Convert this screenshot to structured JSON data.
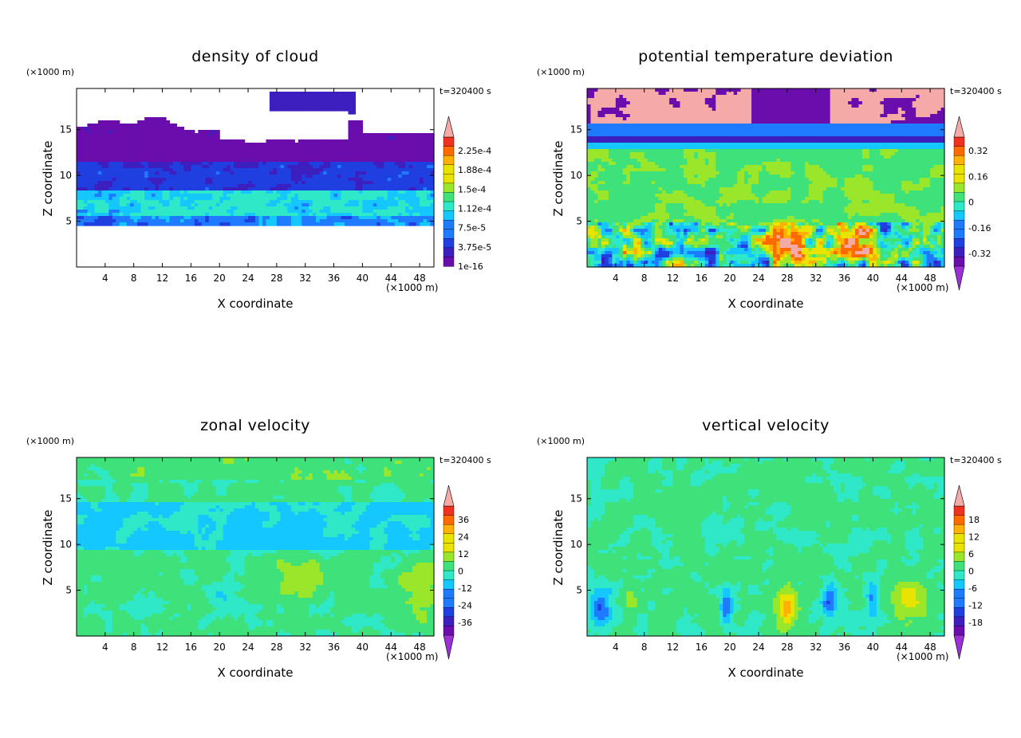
{
  "chart_data": [
    {
      "type": "heatmap",
      "title": "density of cloud",
      "xlabel": "X coordinate",
      "ylabel": "Z coordinate",
      "x_unit": "(×1000 m)",
      "y_unit": "(×1000 m)",
      "time_label": "t=320400 s",
      "xlim": [
        0,
        50
      ],
      "ylim": [
        0,
        19.5
      ],
      "x_ticks": [
        "4",
        "8",
        "12",
        "16",
        "20",
        "24",
        "28",
        "32",
        "36",
        "40",
        "44",
        "48"
      ],
      "y_ticks": [
        "5",
        "10",
        "15"
      ],
      "colorbar": {
        "labels": [
          "2.25e-4",
          "1.88e-4",
          "1.5e-4",
          "1.12e-4",
          "7.5e-5",
          "3.75e-5",
          "1e-16"
        ],
        "arrow_max": true,
        "arrow_min": false
      },
      "field": "cloud"
    },
    {
      "type": "heatmap",
      "title": "potential temperature deviation",
      "xlabel": "X coordinate",
      "ylabel": "Z coordinate",
      "x_unit": "(×1000 m)",
      "y_unit": "(×1000 m)",
      "time_label": "t=320400 s",
      "xlim": [
        0,
        50
      ],
      "ylim": [
        0,
        19.5
      ],
      "x_ticks": [
        "4",
        "8",
        "12",
        "16",
        "20",
        "24",
        "28",
        "32",
        "36",
        "40",
        "44",
        "48"
      ],
      "y_ticks": [
        "5",
        "10",
        "15"
      ],
      "colorbar": {
        "labels": [
          "0.32",
          "0.16",
          "0",
          "-0.16",
          "-0.32"
        ],
        "arrow_max": true,
        "arrow_min": true
      },
      "field": "theta"
    },
    {
      "type": "heatmap",
      "title": "zonal velocity",
      "xlabel": "X coordinate",
      "ylabel": "Z coordinate",
      "x_unit": "(×1000 m)",
      "y_unit": "(×1000 m)",
      "time_label": "t=320400 s",
      "xlim": [
        0,
        50
      ],
      "ylim": [
        0,
        19.5
      ],
      "x_ticks": [
        "4",
        "8",
        "12",
        "16",
        "20",
        "24",
        "28",
        "32",
        "36",
        "40",
        "44",
        "48"
      ],
      "y_ticks": [
        "5",
        "10",
        "15"
      ],
      "colorbar": {
        "labels": [
          "36",
          "24",
          "12",
          "0",
          "-12",
          "-24",
          "-36"
        ],
        "arrow_max": true,
        "arrow_min": true
      },
      "field": "u"
    },
    {
      "type": "heatmap",
      "title": "vertical velocity",
      "xlabel": "X coordinate",
      "ylabel": "Z coordinate",
      "x_unit": "(×1000 m)",
      "y_unit": "(×1000 m)",
      "time_label": "t=320400 s",
      "xlim": [
        0,
        50
      ],
      "ylim": [
        0,
        19.5
      ],
      "x_ticks": [
        "4",
        "8",
        "12",
        "16",
        "20",
        "24",
        "28",
        "32",
        "36",
        "40",
        "44",
        "48"
      ],
      "y_ticks": [
        "5",
        "10",
        "15"
      ],
      "colorbar": {
        "labels": [
          "18",
          "12",
          "6",
          "0",
          "-6",
          "-12",
          "-18"
        ],
        "arrow_max": true,
        "arrow_min": true
      },
      "field": "w"
    }
  ]
}
